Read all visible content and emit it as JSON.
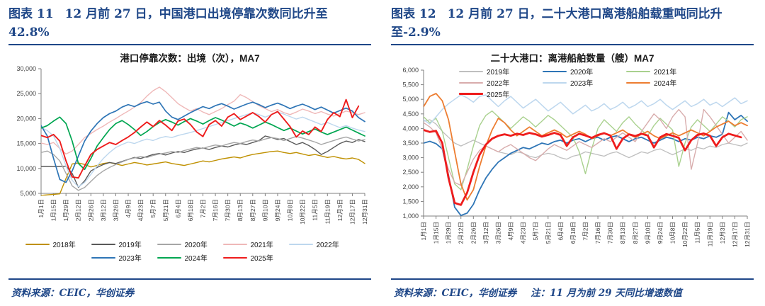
{
  "panels": [
    {
      "figure_label": "图表 11",
      "title": "12 月前 27 日，中国港口出境停靠次数同比升至 42.8%",
      "source": "资料来源：CEIC，华创证券",
      "note": ""
    },
    {
      "figure_label": "图表 12",
      "title": "12 月前 27 日，二十大港口离港船舶载重吨同比升至-2.9%",
      "source": "资料来源：CEIC，华创证券",
      "note": "注：11 月为前 29 天同比增速数值"
    }
  ],
  "colors": {
    "accent_blue": "#1F4788",
    "axis_gray": "#7f7f7f",
    "label_gray": "#3f3f3f"
  },
  "chart_data": [
    {
      "type": "line",
      "title": "港口停靠次数：出境（次），MA7",
      "ylabel": "",
      "xlabel": "",
      "grid": false,
      "legend_position": "bottom",
      "ylim": [
        5000,
        30000
      ],
      "ytick_step": 5000,
      "x_count": 53,
      "x_tick_labels": [
        "1月1日",
        "1月15日",
        "1月29日",
        "2月12日",
        "2月26日",
        "3月12日",
        "3月26日",
        "4月9日",
        "4月23日",
        "5月7日",
        "5月21日",
        "6月4日",
        "6月18日",
        "7月2日",
        "7月16日",
        "7月30日",
        "8月13日",
        "8月27日",
        "9月10日",
        "9月24日",
        "10月8日",
        "10月22日",
        "11月5日",
        "11月19日",
        "12月3日",
        "12月17日",
        "12月31日"
      ],
      "series": [
        {
          "name": "2018年",
          "color": "#BF9000",
          "width": 1.4,
          "values": [
            4600,
            4700,
            4800,
            4900,
            8000,
            10900,
            11100,
            10800,
            10300,
            10600,
            11000,
            11200,
            10900,
            10600,
            10900,
            11200,
            11000,
            10700,
            10900,
            11100,
            11300,
            11000,
            10800,
            10600,
            10900,
            11200,
            11500,
            11300,
            11600,
            11900,
            12100,
            12300,
            12100,
            12500,
            12800,
            13000,
            13200,
            13400,
            13500,
            13200,
            13000,
            13200,
            12900,
            12600,
            12800,
            12500,
            12200,
            12400,
            12100,
            11900,
            12100,
            11800,
            11000
          ]
        },
        {
          "name": "2019年",
          "color": "#595959",
          "width": 1.4,
          "values": [
            10400,
            10400,
            10350,
            10400,
            10450,
            9000,
            6200,
            7500,
            9500,
            10200,
            10800,
            11200,
            11000,
            11400,
            11800,
            12200,
            12000,
            12400,
            12800,
            13000,
            12700,
            13100,
            13400,
            13200,
            13600,
            13900,
            14100,
            13800,
            14200,
            14500,
            14300,
            14700,
            15000,
            14800,
            15200,
            15600,
            16500,
            16200,
            15800,
            16000,
            15400,
            14800,
            15200,
            14600,
            13800,
            12800,
            13400,
            14200,
            15000,
            15500,
            15200,
            15800,
            15400
          ]
        },
        {
          "name": "2020年",
          "color": "#A6A6A6",
          "width": 1.4,
          "values": [
            13200,
            13500,
            12800,
            11500,
            9000,
            6500,
            5600,
            6200,
            7400,
            8600,
            9500,
            10200,
            10800,
            11300,
            11800,
            12100,
            12400,
            12200,
            12600,
            12900,
            13100,
            13400,
            13200,
            13600,
            13900,
            14200,
            14000,
            14400,
            14700,
            14500,
            14900,
            15200,
            15000,
            15400,
            15700,
            15500,
            15900,
            16200,
            16000,
            15600,
            16000,
            16400,
            16100,
            15700,
            15300,
            14800,
            15200,
            15600,
            16000,
            16300,
            15900,
            15500,
            15800
          ]
        },
        {
          "name": "2021年",
          "color": "#EFB8B8",
          "width": 1.4,
          "values": [
            15100,
            14800,
            15200,
            14000,
            12900,
            13500,
            14800,
            16200,
            17000,
            17800,
            18500,
            19300,
            20000,
            20800,
            21500,
            22300,
            23200,
            24500,
            25600,
            26300,
            25400,
            24200,
            23000,
            22200,
            21500,
            22000,
            21300,
            20800,
            21400,
            22000,
            22800,
            23500,
            24800,
            24200,
            23400,
            22600,
            22000,
            21400,
            21800,
            21200,
            20800,
            21300,
            21900,
            21500,
            21000,
            21400,
            20900,
            20500,
            21000,
            21500,
            21200,
            20800,
            21200
          ]
        },
        {
          "name": "2022年",
          "color": "#BDD7EE",
          "width": 1.4,
          "values": [
            18200,
            17600,
            16500,
            14000,
            10500,
            7600,
            6300,
            7200,
            8800,
            10500,
            12000,
            13200,
            14200,
            14800,
            15300,
            15000,
            15500,
            15900,
            15600,
            16100,
            16400,
            16200,
            16600,
            16900,
            17200,
            17600,
            18000,
            18400,
            18800,
            19200,
            19600,
            20000,
            20400,
            20800,
            21200,
            20800,
            20300,
            20800,
            21300,
            20900,
            20400,
            19900,
            20300,
            19800,
            19300,
            18800,
            19200,
            18700,
            18200,
            18600,
            18100,
            17700,
            17400
          ]
        },
        {
          "name": "2023年",
          "color": "#2E75B6",
          "width": 1.7,
          "values": [
            18600,
            16500,
            12000,
            7800,
            7200,
            9500,
            12500,
            15500,
            17500,
            19000,
            20200,
            21000,
            21500,
            22300,
            22800,
            22400,
            23000,
            23400,
            22900,
            23300,
            21500,
            20300,
            19800,
            20500,
            21200,
            21800,
            22400,
            22000,
            22600,
            23000,
            22500,
            21900,
            22400,
            22900,
            23300,
            22800,
            22200,
            22700,
            23100,
            22600,
            22000,
            22500,
            22900,
            22400,
            21800,
            22300,
            21700,
            21100,
            21600,
            22100,
            21500,
            20200,
            19400
          ]
        },
        {
          "name": "2024年",
          "color": "#00A651",
          "width": 1.7,
          "values": [
            18100,
            18600,
            19500,
            20300,
            19000,
            15500,
            11000,
            9800,
            12000,
            14500,
            16200,
            17800,
            19000,
            19600,
            18800,
            17800,
            16600,
            17400,
            18400,
            19200,
            19800,
            19300,
            18700,
            19400,
            20000,
            19500,
            18900,
            19600,
            20200,
            19700,
            19100,
            18500,
            19100,
            18700,
            18100,
            18700,
            19300,
            18800,
            18200,
            17600,
            18100,
            17500,
            16900,
            17400,
            17900,
            17300,
            16800,
            17300,
            17800,
            18300,
            17700,
            17100,
            16500
          ]
        },
        {
          "name": "2025年",
          "color": "#EE1C1C",
          "width": 1.9,
          "values": [
            16600,
            16200,
            16800,
            15500,
            11500,
            8300,
            8100,
            10500,
            12800,
            13800,
            14500,
            15200,
            14800,
            15600,
            16300,
            17200,
            18300,
            19300,
            18400,
            19600,
            18700,
            17600,
            19500,
            19900,
            18800,
            17300,
            16400,
            18800,
            19600,
            18500,
            20300,
            21000,
            19800,
            20500,
            21200,
            20400,
            19300,
            20800,
            21400,
            19900,
            18400,
            16300,
            17500,
            16800,
            18300,
            17400,
            19800,
            21200,
            20400,
            23800,
            20200,
            22500
          ]
        }
      ]
    },
    {
      "type": "line",
      "title": "二十大港口：离港船舶数量（艘）MA7",
      "ylabel": "",
      "xlabel": "",
      "grid": false,
      "legend_position": "top-overlay",
      "ylim": [
        1000,
        6000
      ],
      "ytick_step": 500,
      "x_count": 53,
      "x_tick_labels": [
        "1月1日",
        "1月15日",
        "1月29日",
        "2月12日",
        "2月26日",
        "3月12日",
        "3月26日",
        "4月9日",
        "4月23日",
        "5月7日",
        "5月21日",
        "6月4日",
        "6月18日",
        "7月2日",
        "7月16日",
        "7月30日",
        "8月13日",
        "8月27日",
        "9月10日",
        "9月24日",
        "10月8日",
        "10月22日",
        "11月5日",
        "11月19日",
        "12月3日",
        "12月17日",
        "12月31日"
      ],
      "series": [
        {
          "name": "2019年",
          "color": "#BFBFBF",
          "width": 1.3,
          "values": [
            4250,
            4300,
            4150,
            3900,
            3700,
            3500,
            3400,
            3500,
            3600,
            3500,
            3400,
            3300,
            3200,
            3150,
            3100,
            3200,
            3150,
            3050,
            3000,
            3100,
            3150,
            3100,
            3000,
            2950,
            3050,
            3100,
            3200,
            3150,
            3100,
            3050,
            3150,
            3200,
            3100,
            3000,
            3100,
            3200,
            3150,
            3250,
            3300,
            3200,
            3100,
            3200,
            3300,
            3250,
            3350,
            3300,
            3400,
            3350,
            3450,
            3500,
            3450,
            3400,
            3500
          ]
        },
        {
          "name": "2020年",
          "color": "#2E75B6",
          "width": 1.8,
          "values": [
            3500,
            3560,
            3480,
            3300,
            2400,
            1300,
            1020,
            1100,
            1400,
            1900,
            2300,
            2600,
            2850,
            3000,
            3150,
            3250,
            3350,
            3300,
            3400,
            3500,
            3450,
            3550,
            3600,
            3500,
            3600,
            3650,
            3550,
            3650,
            3700,
            3600,
            3700,
            3750,
            3650,
            3550,
            3650,
            3700,
            3600,
            3500,
            3600,
            3700,
            3650,
            3550,
            3650,
            3600,
            3700,
            3650,
            3750,
            3700,
            3800,
            4550,
            4300,
            4450,
            4250
          ]
        },
        {
          "name": "2021年",
          "color": "#A9D18E",
          "width": 1.4,
          "values": [
            4400,
            4200,
            4350,
            3900,
            3000,
            2100,
            1900,
            2600,
            3400,
            4100,
            4450,
            4600,
            4400,
            4200,
            4000,
            4200,
            4400,
            4250,
            4050,
            4250,
            4450,
            4300,
            4100,
            3900,
            3700,
            3200,
            2450,
            3300,
            4000,
            4300,
            4100,
            3900,
            4200,
            4400,
            4150,
            3950,
            3750,
            4100,
            4350,
            4150,
            3950,
            2700,
            3500,
            4050,
            4300,
            4100,
            3900,
            4150,
            4400,
            4250,
            4050,
            4300,
            4400
          ]
        },
        {
          "name": "2022年",
          "color": "#D8ACAC",
          "width": 1.4,
          "values": [
            4200,
            4050,
            3850,
            3300,
            2600,
            2150,
            2050,
            2500,
            2950,
            3250,
            3400,
            3300,
            3200,
            3350,
            3450,
            3300,
            3150,
            3000,
            2900,
            3100,
            3300,
            3450,
            3350,
            3250,
            3400,
            3550,
            3450,
            3350,
            3500,
            3650,
            3550,
            3700,
            3850,
            3700,
            3550,
            3900,
            4200,
            4500,
            4300,
            4000,
            4400,
            4650,
            4400,
            2600,
            3500,
            4650,
            4400,
            4100,
            3800,
            3500,
            3700,
            3900,
            3600
          ]
        },
        {
          "name": "2023年",
          "color": "#BDD7EE",
          "width": 1.5,
          "values": [
            4300,
            4150,
            4400,
            4650,
            4850,
            5000,
            5150,
            5050,
            4900,
            5100,
            5150,
            4950,
            4750,
            4950,
            5100,
            4900,
            4700,
            4850,
            5000,
            4800,
            4600,
            4750,
            4900,
            4700,
            4500,
            4650,
            4800,
            4600,
            4700,
            4850,
            4650,
            4750,
            4900,
            4700,
            4800,
            4950,
            4750,
            4850,
            5000,
            4800,
            4650,
            4800,
            4950,
            4750,
            4850,
            5000,
            4800,
            4900,
            4750,
            4900,
            5050,
            4850,
            4950
          ]
        },
        {
          "name": "2024年",
          "color": "#ED7D31",
          "width": 1.8,
          "values": [
            4750,
            5100,
            5200,
            4950,
            4300,
            3200,
            2100,
            1550,
            1900,
            2700,
            3400,
            3950,
            4350,
            4200,
            3950,
            3750,
            3900,
            4050,
            3900,
            3750,
            3850,
            3950,
            3850,
            3700,
            3800,
            3900,
            3800,
            3650,
            3750,
            3850,
            3750,
            3850,
            3950,
            3800,
            3700,
            3800,
            3900,
            3750,
            3650,
            3750,
            3850,
            3750,
            3850,
            3950,
            3850,
            3750,
            3900,
            4050,
            4150,
            4250,
            4100,
            4200,
            4100
          ]
        },
        {
          "name": "2025年",
          "color": "#EE1C1C",
          "width": 2.8,
          "values": [
            3950,
            3880,
            3920,
            3500,
            2300,
            1450,
            1380,
            1800,
            2500,
            3100,
            3450,
            3650,
            3750,
            3800,
            3750,
            3820,
            3780,
            3850,
            3800,
            3720,
            3780,
            3850,
            3780,
            3400,
            3700,
            3820,
            3760,
            3680,
            3780,
            3840,
            3760,
            3300,
            3650,
            3800,
            3740,
            3820,
            3760,
            3350,
            3700,
            3810,
            3750,
            3680,
            3250,
            3600,
            3780,
            3830,
            3750,
            3400,
            3700,
            3820,
            3760,
            3700
          ]
        }
      ]
    }
  ]
}
